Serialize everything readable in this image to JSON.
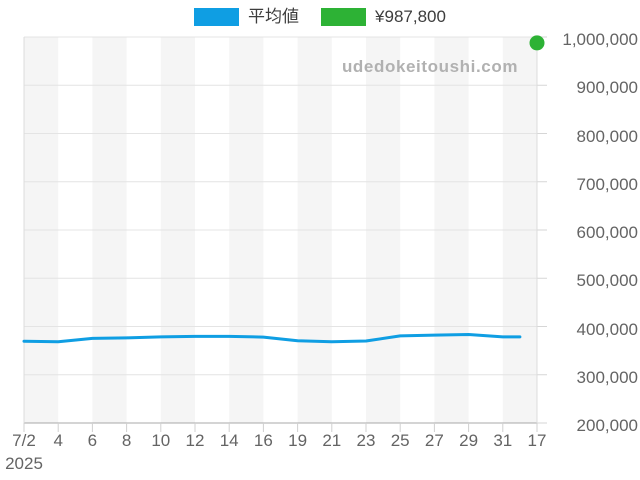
{
  "watermark": "udedokeitoushi.com",
  "legend": {
    "items": [
      {
        "label": "平均値",
        "color": "#0f9ee3"
      },
      {
        "label": "¥987,800",
        "color": "#2db235"
      }
    ]
  },
  "chart_data": {
    "type": "line",
    "title": "",
    "categories": [
      "7/2",
      "4",
      "6",
      "8",
      "10",
      "12",
      "14",
      "16",
      "19",
      "21",
      "23",
      "25",
      "27",
      "29",
      "31",
      "17"
    ],
    "x_axis_year_label": "2025",
    "series": [
      {
        "name": "平均値",
        "type": "line",
        "color": "#0f9ee3",
        "values": [
          369500,
          368500,
          375500,
          376500,
          378500,
          379500,
          379500,
          378000,
          370500,
          368500,
          370000,
          380500,
          382000,
          383500,
          378500,
          null
        ]
      },
      {
        "name": "¥987,800",
        "type": "point",
        "color": "#2db235",
        "values": [
          null,
          null,
          null,
          null,
          null,
          null,
          null,
          null,
          null,
          null,
          null,
          null,
          null,
          null,
          null,
          987800
        ]
      }
    ],
    "ylim": [
      200000,
      1000000
    ],
    "y_tick_step": 100000,
    "y_ticks": [
      "200,000",
      "300,000",
      "400,000",
      "500,000",
      "600,000",
      "700,000",
      "800,000",
      "900,000",
      "1,000,000"
    ],
    "grid": "horizontal-on, vertical-off",
    "background_bands": "vertical alternating gray/white",
    "legend_position": "top-center",
    "y_axis_position": "right"
  }
}
